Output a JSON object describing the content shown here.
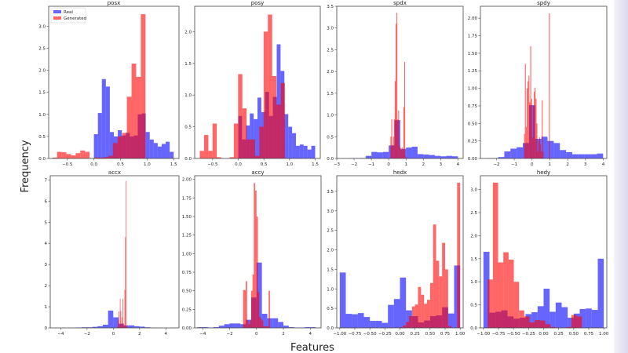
{
  "figure": {
    "xlabel": "Features",
    "ylabel": "Frequency"
  },
  "legend": {
    "entries": [
      {
        "name": "Real",
        "color": "#0000ff"
      },
      {
        "name": "Generated",
        "color": "#ff0000"
      }
    ],
    "placement": "upper-left of first subplot"
  },
  "colors": {
    "real": "#0000ff",
    "generated": "#ff0000",
    "alpha": 0.6
  },
  "chart_data": [
    {
      "type": "bar",
      "title": "posx",
      "xlim": [
        -0.85,
        1.6
      ],
      "ylim": [
        0,
        3.45
      ],
      "xticks": [
        "−0.5",
        "0.0",
        "0.5",
        "1.0",
        "1.5"
      ],
      "yticks": [
        "0.0",
        "0.5",
        "1.0",
        "1.5",
        "2.0",
        "2.5",
        "3.0"
      ],
      "series": [
        {
          "name": "Real",
          "bin_start": 0.0,
          "bin_width": 0.075,
          "values": [
            0.55,
            1.03,
            1.8,
            1.63,
            0.6,
            0.5,
            0.64,
            0.52,
            0.58,
            0.5,
            0.52,
            1.0,
            1.02,
            0.6,
            0.43,
            0.35,
            0.27,
            0.33,
            0.38,
            0.15
          ]
        },
        {
          "name": "Generated",
          "bin_start": -0.78,
          "bin_width": 0.0875,
          "values": [
            0.02,
            0.15,
            0.14,
            0.1,
            0.07,
            0.12,
            0.18,
            0.15,
            0.0,
            0.02,
            0.02,
            0.03,
            0.06,
            0.35,
            0.5,
            0.58,
            1.4,
            2.15,
            1.85,
            3.27
          ]
        }
      ]
    },
    {
      "type": "bar",
      "title": "posy",
      "xlim": [
        -0.85,
        1.6
      ],
      "ylim": [
        0,
        2.4
      ],
      "xticks": [
        "−0.5",
        "0.0",
        "0.5",
        "1.0",
        "1.5"
      ],
      "yticks": [
        "0.0",
        "0.5",
        "1.0",
        "1.5",
        "2.0"
      ],
      "series": [
        {
          "name": "Real",
          "bin_start": 0.0,
          "bin_width": 0.075,
          "values": [
            0.67,
            0.3,
            0.52,
            0.71,
            0.62,
            0.96,
            0.73,
            1.05,
            0.67,
            0.97,
            1.8,
            1.38,
            0.7,
            0.5,
            0.4,
            0.2,
            0.22,
            0.2,
            0.14,
            0.2
          ]
        },
        {
          "name": "Generated",
          "bin_start": -0.75,
          "bin_width": 0.083,
          "values": [
            0.12,
            0.37,
            0.12,
            0.55,
            0.02,
            0,
            0,
            0.02,
            0.55,
            1.33,
            0.79,
            0.3,
            0.3,
            0.04,
            0.5,
            2.0,
            2.27,
            1.3,
            0.85,
            1.19
          ]
        }
      ]
    },
    {
      "type": "bar",
      "title": "spdx",
      "xlim": [
        -3,
        4.3
      ],
      "ylim": [
        0,
        3.5
      ],
      "xticks": [
        "−3",
        "−2",
        "−1",
        "0",
        "1",
        "2",
        "3",
        "4"
      ],
      "yticks": [
        "0.0",
        "0.5",
        "1.0",
        "1.5",
        "2.0",
        "2.5",
        "3.0",
        "3.5"
      ],
      "series": [
        {
          "name": "Real",
          "bin_start": -2.33,
          "bin_width": 0.333,
          "values": [
            0.005,
            0.005,
            0.01,
            0.06,
            0.15,
            0.14,
            0.15,
            0.3,
            0.88,
            0.22,
            0.25,
            0.27,
            0.1,
            0.09,
            0.08,
            0.06,
            0.05,
            0.06,
            0.05
          ]
        },
        {
          "name": "Generated",
          "bin_start": 0.1,
          "bin_width": 0.05,
          "values": [
            0.5,
            0.9,
            0.3,
            0.5,
            0.9,
            1.78,
            3.1,
            3.35,
            0.9,
            1.1,
            0.3,
            0.25,
            0.2,
            0.25,
            0.2,
            1.18,
            2.22,
            0.05
          ]
        }
      ]
    },
    {
      "type": "bar",
      "title": "spdy",
      "xlim": [
        -2.9,
        4.2
      ],
      "ylim": [
        0,
        2.17
      ],
      "xticks": [
        "−2",
        "−1",
        "0",
        "1",
        "2",
        "3",
        "4"
      ],
      "yticks": [
        "0.00",
        "0.25",
        "0.50",
        "0.75",
        "1.00",
        "1.25",
        "1.50",
        "1.75",
        "2.00"
      ],
      "series": [
        {
          "name": "Real",
          "bin_start": -2.6,
          "bin_width": 0.347,
          "values": [
            0.005,
            0.005,
            0.02,
            0.1,
            0.14,
            0.16,
            0.22,
            0.76,
            0.28,
            0.31,
            0.25,
            0.22,
            0.12,
            0.09,
            0.06,
            0.06,
            0.06,
            0.06,
            0.07
          ]
        },
        {
          "name": "Generated",
          "bin_start": -0.45,
          "bin_width": 0.05,
          "values": [
            0.35,
            1.35,
            0.45,
            1.0,
            1.1,
            1.18,
            0.8,
            1.6,
            0.85,
            0.3,
            0.75,
            0.95,
            1.01,
            0.85,
            0.5,
            0.1,
            0.25,
            0.3,
            0.2,
            0.1,
            0.83,
            0.1,
            0,
            0,
            0,
            0,
            0,
            0,
            2.07
          ]
        }
      ]
    },
    {
      "type": "bar",
      "title": "accx",
      "xlim": [
        -4.8,
        5.0
      ],
      "ylim": [
        0,
        7.2
      ],
      "xticks": [
        "−4",
        "−2",
        "0",
        "2",
        "4"
      ],
      "yticks": [
        "0",
        "1",
        "2",
        "3",
        "4",
        "5",
        "6",
        "7"
      ],
      "series": [
        {
          "name": "Real",
          "bin_start": -2.8,
          "bin_width": 0.4,
          "values": [
            0.02,
            0.03,
            0.03,
            0.05,
            0.08,
            0.15,
            0.82,
            0.5,
            0.2,
            0.12,
            0.12,
            0.08,
            0.06,
            0.03,
            0.01
          ]
        },
        {
          "name": "Generated",
          "bin_start": 0.3,
          "bin_width": 0.05,
          "values": [
            0.05,
            0.35,
            0.78,
            0.1,
            1.38,
            0.8,
            0.2,
            0.5,
            1.38,
            0.2,
            0.1,
            1.8,
            4.3,
            6.95,
            0.1
          ]
        }
      ]
    },
    {
      "type": "bar",
      "title": "accy",
      "xlim": [
        -4.6,
        4.8
      ],
      "ylim": [
        0,
        2.05
      ],
      "xticks": [
        "−4",
        "−2",
        "0",
        "2",
        "4"
      ],
      "yticks": [
        "0.00",
        "0.25",
        "0.50",
        "0.75",
        "1.00",
        "1.25",
        "1.50",
        "1.75",
        "2.00"
      ],
      "series": [
        {
          "name": "Real",
          "bin_start": -4.4,
          "bin_width": 0.4,
          "values": [
            0.01,
            0.01,
            0.005,
            0.01,
            0.03,
            0.05,
            0.06,
            0.06,
            0.05,
            0.11,
            0.41,
            0.88,
            0.19,
            0.13,
            0.13,
            0.08,
            0.03,
            0.01,
            0.005,
            0.005,
            0.01,
            0.01
          ]
        },
        {
          "name": "Generated",
          "bin_start": -1.0,
          "bin_width": 0.1,
          "values": [
            0.51,
            0.51,
            0.63,
            0.1,
            0.05,
            0.1,
            0.5,
            0.72,
            1.95,
            1.85,
            1.5,
            0.48,
            0.15,
            0.12,
            0.1,
            0.02,
            0.02,
            0.02,
            0.02,
            0.5
          ]
        }
      ]
    },
    {
      "type": "bar",
      "title": "hedx",
      "xlim": [
        -1.05,
        1.05
      ],
      "ylim": [
        0,
        3.9
      ],
      "xticks": [
        "−1.00",
        "−0.75",
        "−0.50",
        "−0.25",
        "0.00",
        "0.25",
        "0.50",
        "0.75",
        "1.00"
      ],
      "yticks": [
        "0.0",
        "0.5",
        "1.0",
        "1.5",
        "2.0",
        "2.5",
        "3.0",
        "3.5"
      ],
      "series": [
        {
          "name": "Real",
          "bin_start": -1.0,
          "bin_width": 0.1,
          "values": [
            1.42,
            0.36,
            0.35,
            0.38,
            0.28,
            0.18,
            0.18,
            0.13,
            0.59,
            0.74,
            1.29,
            0.45,
            0.3,
            0.14,
            0.19,
            0.3,
            0.32,
            0.53,
            0.37,
            1.6
          ]
        },
        {
          "name": "Generated",
          "bin_start": 0.0,
          "bin_width": 0.05,
          "values": [
            0.02,
            0.06,
            0.15,
            0.3,
            0.55,
            0.6,
            1.05,
            0.85,
            0.62,
            0.72,
            1.15,
            2.65,
            1.72,
            1.32,
            2.18,
            1.5,
            0.05,
            0,
            0,
            3.72
          ]
        }
      ]
    },
    {
      "type": "bar",
      "title": "hedy",
      "xlim": [
        -1.05,
        1.05
      ],
      "ylim": [
        0,
        3.3
      ],
      "xticks": [
        "−1.00",
        "−0.75",
        "−0.50",
        "−0.25",
        "0.00",
        "0.25",
        "0.50",
        "0.75",
        "1.00"
      ],
      "yticks": [
        "0.0",
        "0.5",
        "1.0",
        "1.5",
        "2.0",
        "2.5",
        "3.0"
      ],
      "series": [
        {
          "name": "Real",
          "bin_start": -1.0,
          "bin_width": 0.1,
          "values": [
            1.65,
            0.33,
            0.35,
            0.38,
            0.25,
            0.2,
            0.22,
            0.3,
            0.34,
            0.47,
            0.85,
            0.35,
            0.55,
            0.45,
            0.22,
            0.31,
            0.41,
            0.42,
            0.39,
            1.5
          ]
        },
        {
          "name": "Generated",
          "bin_start": -0.93,
          "bin_width": 0.087,
          "values": [
            1.05,
            3.15,
            1.42,
            1.64,
            1.48,
            1.0,
            0.38,
            0.25,
            0.12,
            0.17,
            0.16,
            0.08,
            0.02,
            0.01,
            0,
            0.02,
            0.28,
            0.25
          ]
        }
      ]
    }
  ]
}
